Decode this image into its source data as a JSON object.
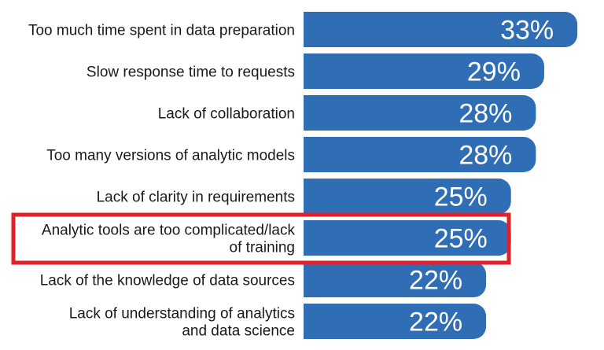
{
  "chart_data": {
    "type": "bar",
    "orientation": "horizontal",
    "categories": [
      [
        "Too much time spent in data preparation"
      ],
      [
        "Slow response time to requests"
      ],
      [
        "Lack of collaboration"
      ],
      [
        "Too many versions of analytic models"
      ],
      [
        "Lack of clarity in requirements"
      ],
      [
        "Analytic tools are too complicated/lack",
        "of training"
      ],
      [
        "Lack of the knowledge of data sources"
      ],
      [
        "Lack of understanding of analytics",
        "and data science"
      ]
    ],
    "values": [
      33,
      29,
      28,
      28,
      25,
      25,
      22,
      22
    ],
    "value_labels": [
      "33%",
      "29%",
      "28%",
      "28%",
      "25%",
      "25%",
      "22%",
      "22%"
    ],
    "highlighted_index": 5,
    "colors": {
      "bar": "#2f6db5",
      "highlight_box": "#e0202a",
      "value_text": "#ffffff",
      "category_text": "#1a1a1a"
    }
  }
}
